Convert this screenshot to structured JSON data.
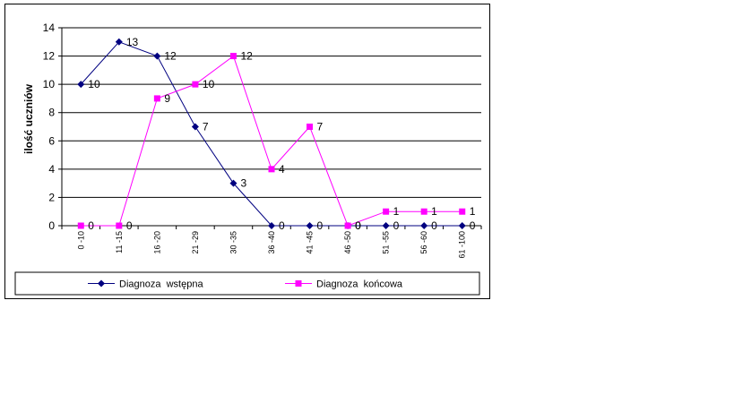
{
  "chart_data": {
    "type": "line",
    "title": "",
    "xlabel": "",
    "ylabel": "ilość uczniów",
    "ylim": [
      0,
      14
    ],
    "yticks": [
      0,
      2,
      4,
      6,
      8,
      10,
      12,
      14
    ],
    "grid": true,
    "legend_position": "bottom",
    "categories": [
      "0 -10",
      "11 -15",
      "16 -20",
      "21 -29",
      "30 -35",
      "36 -40",
      "41 -45",
      "46 -50",
      "51 -55",
      "56 -60",
      "61 -100"
    ],
    "series": [
      {
        "name": "Diagnoza  wstępna",
        "values": [
          10,
          13,
          12,
          7,
          3,
          0,
          0,
          0,
          0,
          0,
          0
        ],
        "color": "#000080",
        "marker": "diamond"
      },
      {
        "name": "Diagnoza  końcowa",
        "values": [
          0,
          0,
          9,
          10,
          12,
          4,
          7,
          0,
          1,
          1,
          1
        ],
        "color": "#ff00ff",
        "marker": "square"
      }
    ]
  }
}
